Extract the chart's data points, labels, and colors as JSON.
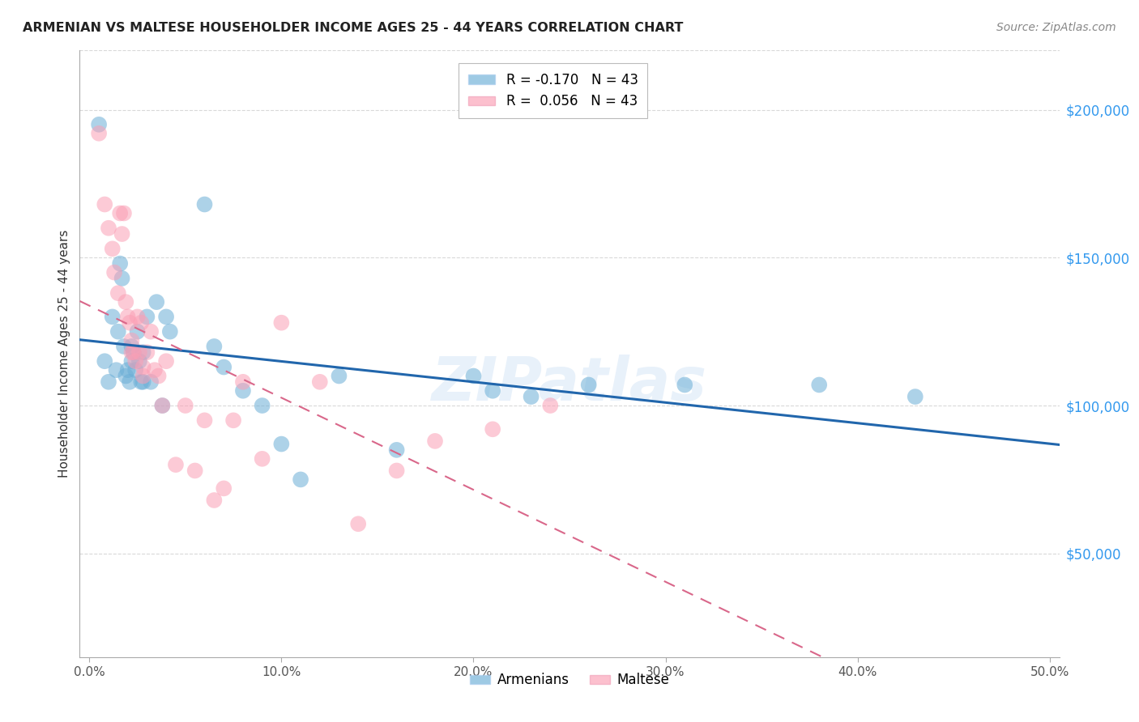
{
  "title": "ARMENIAN VS MALTESE HOUSEHOLDER INCOME AGES 25 - 44 YEARS CORRELATION CHART",
  "source": "Source: ZipAtlas.com",
  "ylabel": "Householder Income Ages 25 - 44 years",
  "xlabel_ticks": [
    "0.0%",
    "10.0%",
    "20.0%",
    "30.0%",
    "40.0%",
    "50.0%"
  ],
  "xlabel_vals": [
    0.0,
    0.1,
    0.2,
    0.3,
    0.4,
    0.5
  ],
  "ylabel_vals": [
    50000,
    100000,
    150000,
    200000
  ],
  "xlim": [
    -0.005,
    0.505
  ],
  "ylim": [
    15000,
    220000
  ],
  "legend_armenian": "R = -0.170   N = 43",
  "legend_maltese": "R =  0.056   N = 43",
  "armenian_color": "#6baed6",
  "maltese_color": "#fb9fb5",
  "armenian_line_color": "#2166ac",
  "maltese_line_color": "#d9678a",
  "grid_color": "#d0d0d0",
  "background_color": "#ffffff",
  "watermark": "ZIPatlas",
  "armenian_x": [
    0.005,
    0.008,
    0.01,
    0.012,
    0.014,
    0.015,
    0.016,
    0.017,
    0.018,
    0.019,
    0.02,
    0.021,
    0.022,
    0.022,
    0.023,
    0.024,
    0.025,
    0.026,
    0.027,
    0.028,
    0.028,
    0.03,
    0.032,
    0.035,
    0.038,
    0.04,
    0.042,
    0.06,
    0.065,
    0.07,
    0.08,
    0.09,
    0.1,
    0.11,
    0.13,
    0.16,
    0.2,
    0.21,
    0.23,
    0.26,
    0.31,
    0.38,
    0.43
  ],
  "armenian_y": [
    195000,
    115000,
    108000,
    130000,
    112000,
    125000,
    148000,
    143000,
    120000,
    110000,
    112000,
    108000,
    120000,
    115000,
    118000,
    112000,
    125000,
    115000,
    108000,
    118000,
    108000,
    130000,
    108000,
    135000,
    100000,
    130000,
    125000,
    168000,
    120000,
    113000,
    105000,
    100000,
    87000,
    75000,
    110000,
    85000,
    110000,
    105000,
    103000,
    107000,
    107000,
    107000,
    103000
  ],
  "maltese_x": [
    0.005,
    0.008,
    0.01,
    0.012,
    0.013,
    0.015,
    0.016,
    0.017,
    0.018,
    0.019,
    0.02,
    0.021,
    0.022,
    0.022,
    0.023,
    0.024,
    0.025,
    0.026,
    0.027,
    0.028,
    0.028,
    0.03,
    0.032,
    0.034,
    0.036,
    0.038,
    0.04,
    0.045,
    0.05,
    0.055,
    0.06,
    0.065,
    0.07,
    0.075,
    0.08,
    0.09,
    0.1,
    0.12,
    0.14,
    0.16,
    0.18,
    0.21,
    0.24
  ],
  "maltese_y": [
    192000,
    168000,
    160000,
    153000,
    145000,
    138000,
    165000,
    158000,
    165000,
    135000,
    130000,
    128000,
    122000,
    118000,
    118000,
    115000,
    130000,
    118000,
    128000,
    113000,
    110000,
    118000,
    125000,
    112000,
    110000,
    100000,
    115000,
    80000,
    100000,
    78000,
    95000,
    68000,
    72000,
    95000,
    108000,
    82000,
    128000,
    108000,
    60000,
    78000,
    88000,
    92000,
    100000
  ]
}
